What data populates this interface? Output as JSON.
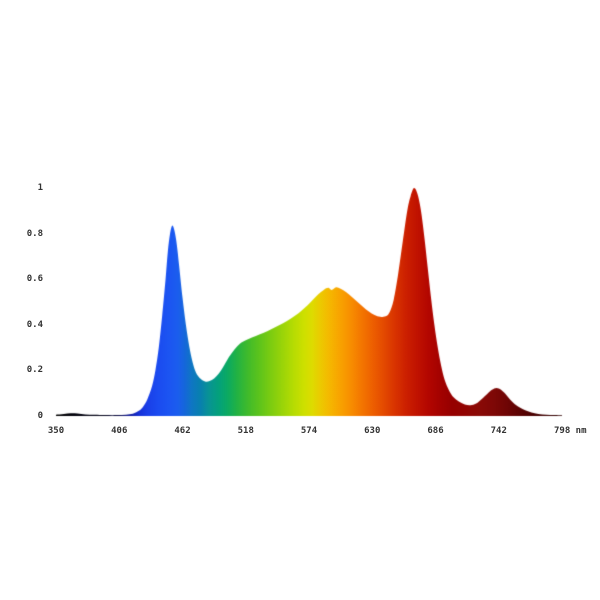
{
  "page": {
    "background": "#ffffff",
    "tick_label_color": "#333333"
  },
  "chart_data": {
    "type": "area",
    "title": "",
    "xlabel": "",
    "ylabel": "",
    "x_unit": "nm",
    "xlim": [
      350,
      798
    ],
    "ylim": [
      0,
      1
    ],
    "grid": false,
    "legend": false,
    "x_ticks": [
      350,
      406,
      462,
      518,
      574,
      630,
      686,
      742,
      798
    ],
    "x_tick_labels": [
      "350",
      "406",
      "462",
      "518",
      "574",
      "630",
      "686",
      "742",
      "798 nm"
    ],
    "y_ticks": [
      1,
      0.8,
      0.6,
      0.4,
      0.2,
      0
    ],
    "y_tick_labels": [
      "1",
      "0.8",
      "0.6",
      "0.4",
      "0.2",
      "0"
    ],
    "points": [
      [
        350,
        0.006
      ],
      [
        357,
        0.009
      ],
      [
        363,
        0.012
      ],
      [
        369,
        0.011
      ],
      [
        376,
        0.007
      ],
      [
        384,
        0.005
      ],
      [
        394,
        0.004
      ],
      [
        404,
        0.004
      ],
      [
        412,
        0.006
      ],
      [
        418,
        0.01
      ],
      [
        423,
        0.022
      ],
      [
        427,
        0.04
      ],
      [
        431,
        0.075
      ],
      [
        435,
        0.13
      ],
      [
        438,
        0.2
      ],
      [
        441,
        0.3
      ],
      [
        444,
        0.44
      ],
      [
        447,
        0.6
      ],
      [
        449,
        0.72
      ],
      [
        451,
        0.8
      ],
      [
        453,
        0.835
      ],
      [
        455,
        0.81
      ],
      [
        457,
        0.75
      ],
      [
        459,
        0.66
      ],
      [
        462,
        0.52
      ],
      [
        465,
        0.4
      ],
      [
        468,
        0.305
      ],
      [
        471,
        0.235
      ],
      [
        474,
        0.19
      ],
      [
        478,
        0.163
      ],
      [
        482,
        0.151
      ],
      [
        486,
        0.153
      ],
      [
        490,
        0.165
      ],
      [
        494,
        0.185
      ],
      [
        498,
        0.215
      ],
      [
        503,
        0.258
      ],
      [
        508,
        0.292
      ],
      [
        513,
        0.318
      ],
      [
        518,
        0.332
      ],
      [
        524,
        0.345
      ],
      [
        530,
        0.357
      ],
      [
        537,
        0.372
      ],
      [
        544,
        0.389
      ],
      [
        551,
        0.407
      ],
      [
        558,
        0.428
      ],
      [
        565,
        0.452
      ],
      [
        571,
        0.478
      ],
      [
        577,
        0.508
      ],
      [
        582,
        0.533
      ],
      [
        587,
        0.553
      ],
      [
        591,
        0.562
      ],
      [
        594,
        0.553
      ],
      [
        598,
        0.565
      ],
      [
        602,
        0.558
      ],
      [
        607,
        0.543
      ],
      [
        612,
        0.522
      ],
      [
        617,
        0.5
      ],
      [
        622,
        0.478
      ],
      [
        627,
        0.458
      ],
      [
        632,
        0.443
      ],
      [
        637,
        0.435
      ],
      [
        641,
        0.436
      ],
      [
        645,
        0.452
      ],
      [
        649,
        0.51
      ],
      [
        653,
        0.625
      ],
      [
        657,
        0.765
      ],
      [
        661,
        0.9
      ],
      [
        664,
        0.965
      ],
      [
        667,
        1.0
      ],
      [
        670,
        0.975
      ],
      [
        673,
        0.905
      ],
      [
        676,
        0.79
      ],
      [
        679,
        0.655
      ],
      [
        682,
        0.52
      ],
      [
        685,
        0.4
      ],
      [
        688,
        0.3
      ],
      [
        691,
        0.22
      ],
      [
        694,
        0.16
      ],
      [
        698,
        0.112
      ],
      [
        702,
        0.082
      ],
      [
        707,
        0.062
      ],
      [
        712,
        0.05
      ],
      [
        717,
        0.047
      ],
      [
        722,
        0.055
      ],
      [
        727,
        0.075
      ],
      [
        732,
        0.098
      ],
      [
        736,
        0.115
      ],
      [
        740,
        0.123
      ],
      [
        744,
        0.115
      ],
      [
        748,
        0.096
      ],
      [
        752,
        0.072
      ],
      [
        756,
        0.053
      ],
      [
        761,
        0.036
      ],
      [
        766,
        0.024
      ],
      [
        771,
        0.015
      ],
      [
        777,
        0.009
      ],
      [
        784,
        0.006
      ],
      [
        791,
        0.004
      ],
      [
        798,
        0.003
      ]
    ],
    "fill_palette": [
      [
        350,
        "#000000"
      ],
      [
        392,
        "#03031a"
      ],
      [
        405,
        "#080840"
      ],
      [
        412,
        "#0f1480"
      ],
      [
        418,
        "#1222b0"
      ],
      [
        424,
        "#1632d8"
      ],
      [
        431,
        "#1a3fe8"
      ],
      [
        440,
        "#1b4bf0"
      ],
      [
        450,
        "#1c55f2"
      ],
      [
        458,
        "#1b5eee"
      ],
      [
        464,
        "#1567da"
      ],
      [
        470,
        "#0f76c4"
      ],
      [
        478,
        "#0881ae"
      ],
      [
        486,
        "#089592"
      ],
      [
        494,
        "#04a17c"
      ],
      [
        502,
        "#0caa62"
      ],
      [
        510,
        "#22b244"
      ],
      [
        520,
        "#41bb2b"
      ],
      [
        530,
        "#5dc41c"
      ],
      [
        540,
        "#7ccc11"
      ],
      [
        550,
        "#99d409"
      ],
      [
        560,
        "#b5dc03"
      ],
      [
        570,
        "#cfe000"
      ],
      [
        577,
        "#dedc00"
      ],
      [
        584,
        "#ecca00"
      ],
      [
        592,
        "#f5b800"
      ],
      [
        600,
        "#f8a600"
      ],
      [
        610,
        "#f89000"
      ],
      [
        620,
        "#f47800"
      ],
      [
        630,
        "#ee6000"
      ],
      [
        640,
        "#e44a00"
      ],
      [
        650,
        "#d93400"
      ],
      [
        660,
        "#cc2000"
      ],
      [
        670,
        "#c01200"
      ],
      [
        680,
        "#b30600"
      ],
      [
        690,
        "#a40200"
      ],
      [
        700,
        "#970000"
      ],
      [
        712,
        "#920402"
      ],
      [
        725,
        "#8a0a06"
      ],
      [
        738,
        "#7e0806"
      ],
      [
        750,
        "#6e0505"
      ],
      [
        762,
        "#5a0303"
      ],
      [
        775,
        "#460101"
      ],
      [
        798,
        "#2e0000"
      ]
    ]
  }
}
